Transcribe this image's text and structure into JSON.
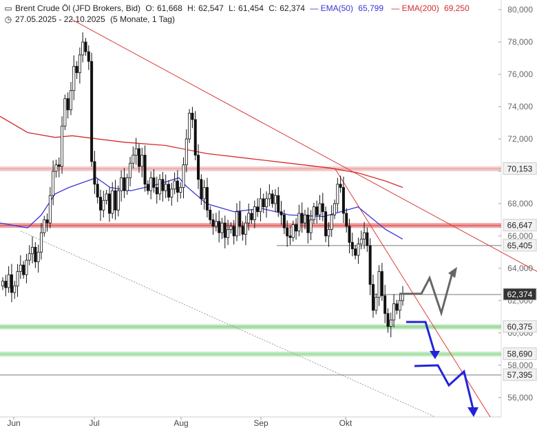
{
  "header": {
    "title": "Brent Crude Öl (JFD Brokers, Bid)",
    "open_label": "O:",
    "open": "61,668",
    "high_label": "H:",
    "high": "62,547",
    "low_label": "L:",
    "low": "61,454",
    "close_label": "C:",
    "close": "62,374",
    "ema50_label": "EMA(50)",
    "ema50_value": "65,799",
    "ema200_label": "EMA(200)",
    "ema200_value": "69,250",
    "date_range": "27.05.2025 - 22.10.2025",
    "period": "(5 Monate, 1 Tag)",
    "chart_icon": "candlestick-icon",
    "clock_icon": "clock-icon"
  },
  "chart_data": {
    "type": "candlestick",
    "x_labels": [
      "Jun",
      "Jul",
      "Aug",
      "Sep",
      "Okt"
    ],
    "y_ticks": [
      "80,000",
      "78,000",
      "76,000",
      "74,000",
      "72,000",
      "70,000",
      "68,000",
      "66,000",
      "64,000",
      "62,000",
      "60,000",
      "58,000",
      "56,000"
    ],
    "ylim": [
      54.8,
      80.6
    ],
    "levels": [
      {
        "label": "70,153",
        "value": 70.153,
        "color": "#e8a0a0",
        "band": true
      },
      {
        "label": "66,647",
        "value": 66.647,
        "color": "#e05050",
        "band": true
      },
      {
        "label": "65,405",
        "value": 65.405,
        "color": "#555555",
        "band": false
      },
      {
        "label": "62,374",
        "value": 62.374,
        "color": "#555555",
        "band": false,
        "current": true
      },
      {
        "label": "60,375",
        "value": 60.375,
        "color": "#7fcf7f",
        "band": true
      },
      {
        "label": "58,690",
        "value": 58.69,
        "color": "#8fd88f",
        "band": true
      },
      {
        "label": "57,395",
        "value": 57.395,
        "color": "#555555",
        "band": false
      }
    ],
    "closes": [
      63.2,
      62.8,
      63.6,
      62.5,
      62.9,
      63.8,
      64.2,
      63.6,
      64.5,
      64.9,
      65.3,
      64.4,
      65.0,
      66.2,
      67.0,
      66.8,
      68.5,
      70.0,
      70.4,
      70.3,
      72.8,
      74.5,
      73.8,
      75.0,
      76.5,
      76.1,
      77.2,
      78.0,
      77.4,
      76.8,
      70.6,
      69.2,
      68.4,
      67.6,
      68.2,
      68.6,
      67.4,
      68.8,
      67.6,
      68.8,
      69.6,
      68.8,
      69.6,
      70.5,
      71.0,
      71.4,
      70.3,
      71.0,
      69.2,
      68.8,
      69.6,
      69.0,
      68.6,
      69.5,
      68.8,
      69.2,
      68.4,
      68.9,
      69.4,
      68.7,
      69.0,
      70.4,
      72.0,
      73.6,
      73.2,
      71.0,
      69.5,
      68.3,
      69.0,
      67.6,
      67.0,
      66.6,
      66.9,
      66.2,
      66.8,
      65.9,
      66.4,
      66.6,
      66.0,
      67.5,
      66.6,
      66.1,
      66.8,
      67.4,
      67.0,
      67.8,
      67.5,
      68.3,
      67.8,
      68.3,
      68.6,
      68.0,
      68.5,
      67.5,
      67.3,
      66.5,
      66.0,
      65.9,
      66.7,
      66.3,
      67.4,
      66.8,
      67.3,
      66.2,
      67.0,
      67.8,
      67.3,
      68.0,
      67.5,
      66.0,
      66.4,
      67.3,
      68.0,
      69.2,
      69.0,
      67.4,
      66.6,
      65.6,
      65.2,
      64.8,
      65.5,
      65.8,
      66.2,
      65.4,
      63.0,
      61.4,
      62.2,
      63.8,
      62.3,
      61.2,
      60.4,
      60.8,
      61.8,
      61.4,
      62.0,
      62.374
    ],
    "ema50": [
      [
        0,
        66.8
      ],
      [
        40,
        66.5
      ],
      [
        60,
        67.3
      ],
      [
        80,
        68.6
      ],
      [
        100,
        69.0
      ],
      [
        120,
        69.3
      ],
      [
        140,
        69.6
      ],
      [
        160,
        69.0
      ],
      [
        190,
        68.8
      ],
      [
        230,
        69.2
      ],
      [
        260,
        69.6
      ],
      [
        270,
        69.1
      ],
      [
        300,
        68.0
      ],
      [
        340,
        67.5
      ],
      [
        380,
        67.7
      ],
      [
        420,
        67.3
      ],
      [
        470,
        67.2
      ],
      [
        520,
        67.8
      ],
      [
        560,
        66.4
      ],
      [
        585,
        65.8
      ]
    ],
    "ema200": [
      [
        0,
        73.4
      ],
      [
        40,
        72.4
      ],
      [
        80,
        72.1
      ],
      [
        105,
        72.2
      ],
      [
        180,
        71.8
      ],
      [
        240,
        71.6
      ],
      [
        300,
        71.1
      ],
      [
        360,
        70.8
      ],
      [
        420,
        70.5
      ],
      [
        480,
        70.2
      ],
      [
        520,
        69.9
      ],
      [
        560,
        69.4
      ],
      [
        585,
        69.0
      ]
    ]
  }
}
